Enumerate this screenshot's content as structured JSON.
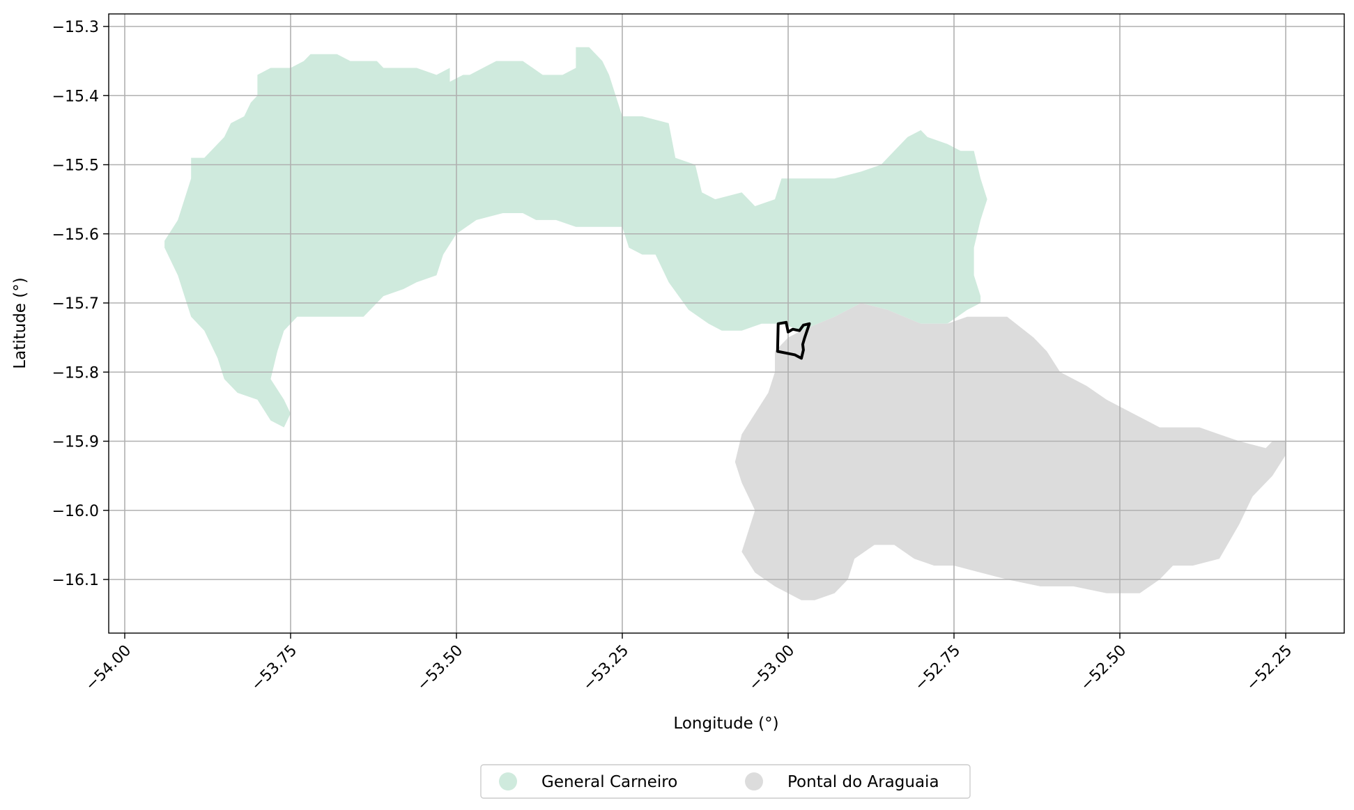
{
  "map": {
    "xlabel": "Longitude (°)",
    "ylabel": "Latitude (°)",
    "grid": true,
    "x_ticks": [
      {
        "value": -54.0,
        "label": "−54.00"
      },
      {
        "value": -53.75,
        "label": "−53.75"
      },
      {
        "value": -53.5,
        "label": "−53.50"
      },
      {
        "value": -53.25,
        "label": "−53.25"
      },
      {
        "value": -53.0,
        "label": "−53.00"
      },
      {
        "value": -52.75,
        "label": "−52.75"
      },
      {
        "value": -52.5,
        "label": "−52.50"
      },
      {
        "value": -52.25,
        "label": "−52.25"
      }
    ],
    "y_ticks": [
      {
        "value": -15.3,
        "label": "−15.3"
      },
      {
        "value": -15.4,
        "label": "−15.4"
      },
      {
        "value": -15.5,
        "label": "−15.5"
      },
      {
        "value": -15.6,
        "label": "−15.6"
      },
      {
        "value": -15.7,
        "label": "−15.7"
      },
      {
        "value": -15.8,
        "label": "−15.8"
      },
      {
        "value": -15.9,
        "label": "−15.9"
      },
      {
        "value": -16.0,
        "label": "−16.0"
      },
      {
        "value": -16.1,
        "label": "−16.1"
      }
    ],
    "legend_placement": "bottom-center",
    "regions": [
      {
        "name": "General Carneiro",
        "color": "#cfeadd",
        "outline": [
          [
            -53.94,
            -15.61
          ],
          [
            -53.92,
            -15.58
          ],
          [
            -53.91,
            -15.55
          ],
          [
            -53.9,
            -15.52
          ],
          [
            -53.9,
            -15.49
          ],
          [
            -53.88,
            -15.49
          ],
          [
            -53.87,
            -15.48
          ],
          [
            -53.85,
            -15.46
          ],
          [
            -53.84,
            -15.44
          ],
          [
            -53.82,
            -15.43
          ],
          [
            -53.81,
            -15.41
          ],
          [
            -53.8,
            -15.4
          ],
          [
            -53.8,
            -15.37
          ],
          [
            -53.78,
            -15.36
          ],
          [
            -53.75,
            -15.36
          ],
          [
            -53.73,
            -15.35
          ],
          [
            -53.72,
            -15.34
          ],
          [
            -53.68,
            -15.34
          ],
          [
            -53.66,
            -15.35
          ],
          [
            -53.62,
            -15.35
          ],
          [
            -53.61,
            -15.36
          ],
          [
            -53.58,
            -15.36
          ],
          [
            -53.56,
            -15.36
          ],
          [
            -53.53,
            -15.37
          ],
          [
            -53.51,
            -15.36
          ],
          [
            -53.51,
            -15.38
          ],
          [
            -53.49,
            -15.37
          ],
          [
            -53.48,
            -15.37
          ],
          [
            -53.46,
            -15.36
          ],
          [
            -53.44,
            -15.35
          ],
          [
            -53.4,
            -15.35
          ],
          [
            -53.37,
            -15.37
          ],
          [
            -53.34,
            -15.37
          ],
          [
            -53.32,
            -15.36
          ],
          [
            -53.32,
            -15.33
          ],
          [
            -53.3,
            -15.33
          ],
          [
            -53.28,
            -15.35
          ],
          [
            -53.27,
            -15.37
          ],
          [
            -53.26,
            -15.4
          ],
          [
            -53.25,
            -15.43
          ],
          [
            -53.22,
            -15.43
          ],
          [
            -53.18,
            -15.44
          ],
          [
            -53.17,
            -15.49
          ],
          [
            -53.14,
            -15.5
          ],
          [
            -53.13,
            -15.54
          ],
          [
            -53.11,
            -15.55
          ],
          [
            -53.07,
            -15.54
          ],
          [
            -53.05,
            -15.56
          ],
          [
            -53.02,
            -15.55
          ],
          [
            -53.01,
            -15.52
          ],
          [
            -52.98,
            -15.52
          ],
          [
            -52.93,
            -15.52
          ],
          [
            -52.89,
            -15.51
          ],
          [
            -52.86,
            -15.5
          ],
          [
            -52.84,
            -15.48
          ],
          [
            -52.82,
            -15.46
          ],
          [
            -52.8,
            -15.45
          ],
          [
            -52.79,
            -15.46
          ],
          [
            -52.76,
            -15.47
          ],
          [
            -52.74,
            -15.48
          ],
          [
            -52.72,
            -15.48
          ],
          [
            -52.71,
            -15.52
          ],
          [
            -52.7,
            -15.55
          ],
          [
            -52.71,
            -15.58
          ],
          [
            -52.72,
            -15.62
          ],
          [
            -52.72,
            -15.66
          ],
          [
            -52.71,
            -15.69
          ],
          [
            -52.71,
            -15.7
          ],
          [
            -52.73,
            -15.71
          ],
          [
            -52.76,
            -15.73
          ],
          [
            -52.8,
            -15.73
          ],
          [
            -52.85,
            -15.71
          ],
          [
            -52.89,
            -15.7
          ],
          [
            -52.93,
            -15.72
          ],
          [
            -52.98,
            -15.74
          ],
          [
            -53.01,
            -15.73
          ],
          [
            -53.04,
            -15.73
          ],
          [
            -53.07,
            -15.74
          ],
          [
            -53.1,
            -15.74
          ],
          [
            -53.12,
            -15.73
          ],
          [
            -53.15,
            -15.71
          ],
          [
            -53.18,
            -15.67
          ],
          [
            -53.2,
            -15.63
          ],
          [
            -53.22,
            -15.63
          ],
          [
            -53.24,
            -15.62
          ],
          [
            -53.25,
            -15.59
          ],
          [
            -53.28,
            -15.59
          ],
          [
            -53.32,
            -15.59
          ],
          [
            -53.35,
            -15.58
          ],
          [
            -53.38,
            -15.58
          ],
          [
            -53.4,
            -15.57
          ],
          [
            -53.43,
            -15.57
          ],
          [
            -53.47,
            -15.58
          ],
          [
            -53.5,
            -15.6
          ],
          [
            -53.52,
            -15.63
          ],
          [
            -53.53,
            -15.66
          ],
          [
            -53.56,
            -15.67
          ],
          [
            -53.58,
            -15.68
          ],
          [
            -53.61,
            -15.69
          ],
          [
            -53.64,
            -15.72
          ],
          [
            -53.67,
            -15.72
          ],
          [
            -53.7,
            -15.72
          ],
          [
            -53.72,
            -15.72
          ],
          [
            -53.74,
            -15.72
          ],
          [
            -53.76,
            -15.74
          ],
          [
            -53.77,
            -15.77
          ],
          [
            -53.78,
            -15.81
          ],
          [
            -53.76,
            -15.84
          ],
          [
            -53.75,
            -15.86
          ],
          [
            -53.76,
            -15.88
          ],
          [
            -53.78,
            -15.87
          ],
          [
            -53.8,
            -15.84
          ],
          [
            -53.83,
            -15.83
          ],
          [
            -53.85,
            -15.81
          ],
          [
            -53.86,
            -15.78
          ],
          [
            -53.88,
            -15.74
          ],
          [
            -53.9,
            -15.72
          ],
          [
            -53.91,
            -15.69
          ],
          [
            -53.92,
            -15.66
          ],
          [
            -53.93,
            -15.64
          ],
          [
            -53.94,
            -15.62
          ]
        ]
      },
      {
        "name": "Pontal do Araguaia",
        "color": "#dcdcdc",
        "outline": [
          [
            -52.98,
            -15.74
          ],
          [
            -52.93,
            -15.72
          ],
          [
            -52.89,
            -15.7
          ],
          [
            -52.85,
            -15.71
          ],
          [
            -52.8,
            -15.73
          ],
          [
            -52.76,
            -15.73
          ],
          [
            -52.73,
            -15.72
          ],
          [
            -52.7,
            -15.72
          ],
          [
            -52.67,
            -15.72
          ],
          [
            -52.63,
            -15.75
          ],
          [
            -52.61,
            -15.77
          ],
          [
            -52.59,
            -15.8
          ],
          [
            -52.55,
            -15.82
          ],
          [
            -52.52,
            -15.84
          ],
          [
            -52.48,
            -15.86
          ],
          [
            -52.44,
            -15.88
          ],
          [
            -52.38,
            -15.88
          ],
          [
            -52.35,
            -15.89
          ],
          [
            -52.32,
            -15.9
          ],
          [
            -52.28,
            -15.91
          ],
          [
            -52.27,
            -15.9
          ],
          [
            -52.25,
            -15.9
          ],
          [
            -52.25,
            -15.92
          ],
          [
            -52.27,
            -15.95
          ],
          [
            -52.3,
            -15.98
          ],
          [
            -52.32,
            -16.02
          ],
          [
            -52.35,
            -16.07
          ],
          [
            -52.39,
            -16.08
          ],
          [
            -52.42,
            -16.08
          ],
          [
            -52.44,
            -16.1
          ],
          [
            -52.47,
            -16.12
          ],
          [
            -52.52,
            -16.12
          ],
          [
            -52.57,
            -16.11
          ],
          [
            -52.62,
            -16.11
          ],
          [
            -52.67,
            -16.1
          ],
          [
            -52.71,
            -16.09
          ],
          [
            -52.75,
            -16.08
          ],
          [
            -52.78,
            -16.08
          ],
          [
            -52.81,
            -16.07
          ],
          [
            -52.84,
            -16.05
          ],
          [
            -52.87,
            -16.05
          ],
          [
            -52.9,
            -16.07
          ],
          [
            -52.91,
            -16.1
          ],
          [
            -52.93,
            -16.12
          ],
          [
            -52.96,
            -16.13
          ],
          [
            -52.98,
            -16.13
          ],
          [
            -53.02,
            -16.11
          ],
          [
            -53.05,
            -16.09
          ],
          [
            -53.07,
            -16.06
          ],
          [
            -53.06,
            -16.03
          ],
          [
            -53.05,
            -16.0
          ],
          [
            -53.07,
            -15.96
          ],
          [
            -53.08,
            -15.93
          ],
          [
            -53.07,
            -15.89
          ],
          [
            -53.05,
            -15.86
          ],
          [
            -53.03,
            -15.83
          ],
          [
            -53.02,
            -15.8
          ],
          [
            -53.02,
            -15.77
          ],
          [
            -53.0,
            -15.75
          ]
        ]
      }
    ],
    "highlight_outline": [
      [
        -53.015,
        -15.73
      ],
      [
        -53.003,
        -15.728
      ],
      [
        -53.0,
        -15.742
      ],
      [
        -52.993,
        -15.738
      ],
      [
        -52.983,
        -15.74
      ],
      [
        -52.977,
        -15.732
      ],
      [
        -52.968,
        -15.73
      ],
      [
        -52.975,
        -15.75
      ],
      [
        -52.978,
        -15.76
      ],
      [
        -52.977,
        -15.768
      ],
      [
        -52.98,
        -15.78
      ],
      [
        -52.99,
        -15.775
      ],
      [
        -53.016,
        -15.77
      ]
    ]
  }
}
